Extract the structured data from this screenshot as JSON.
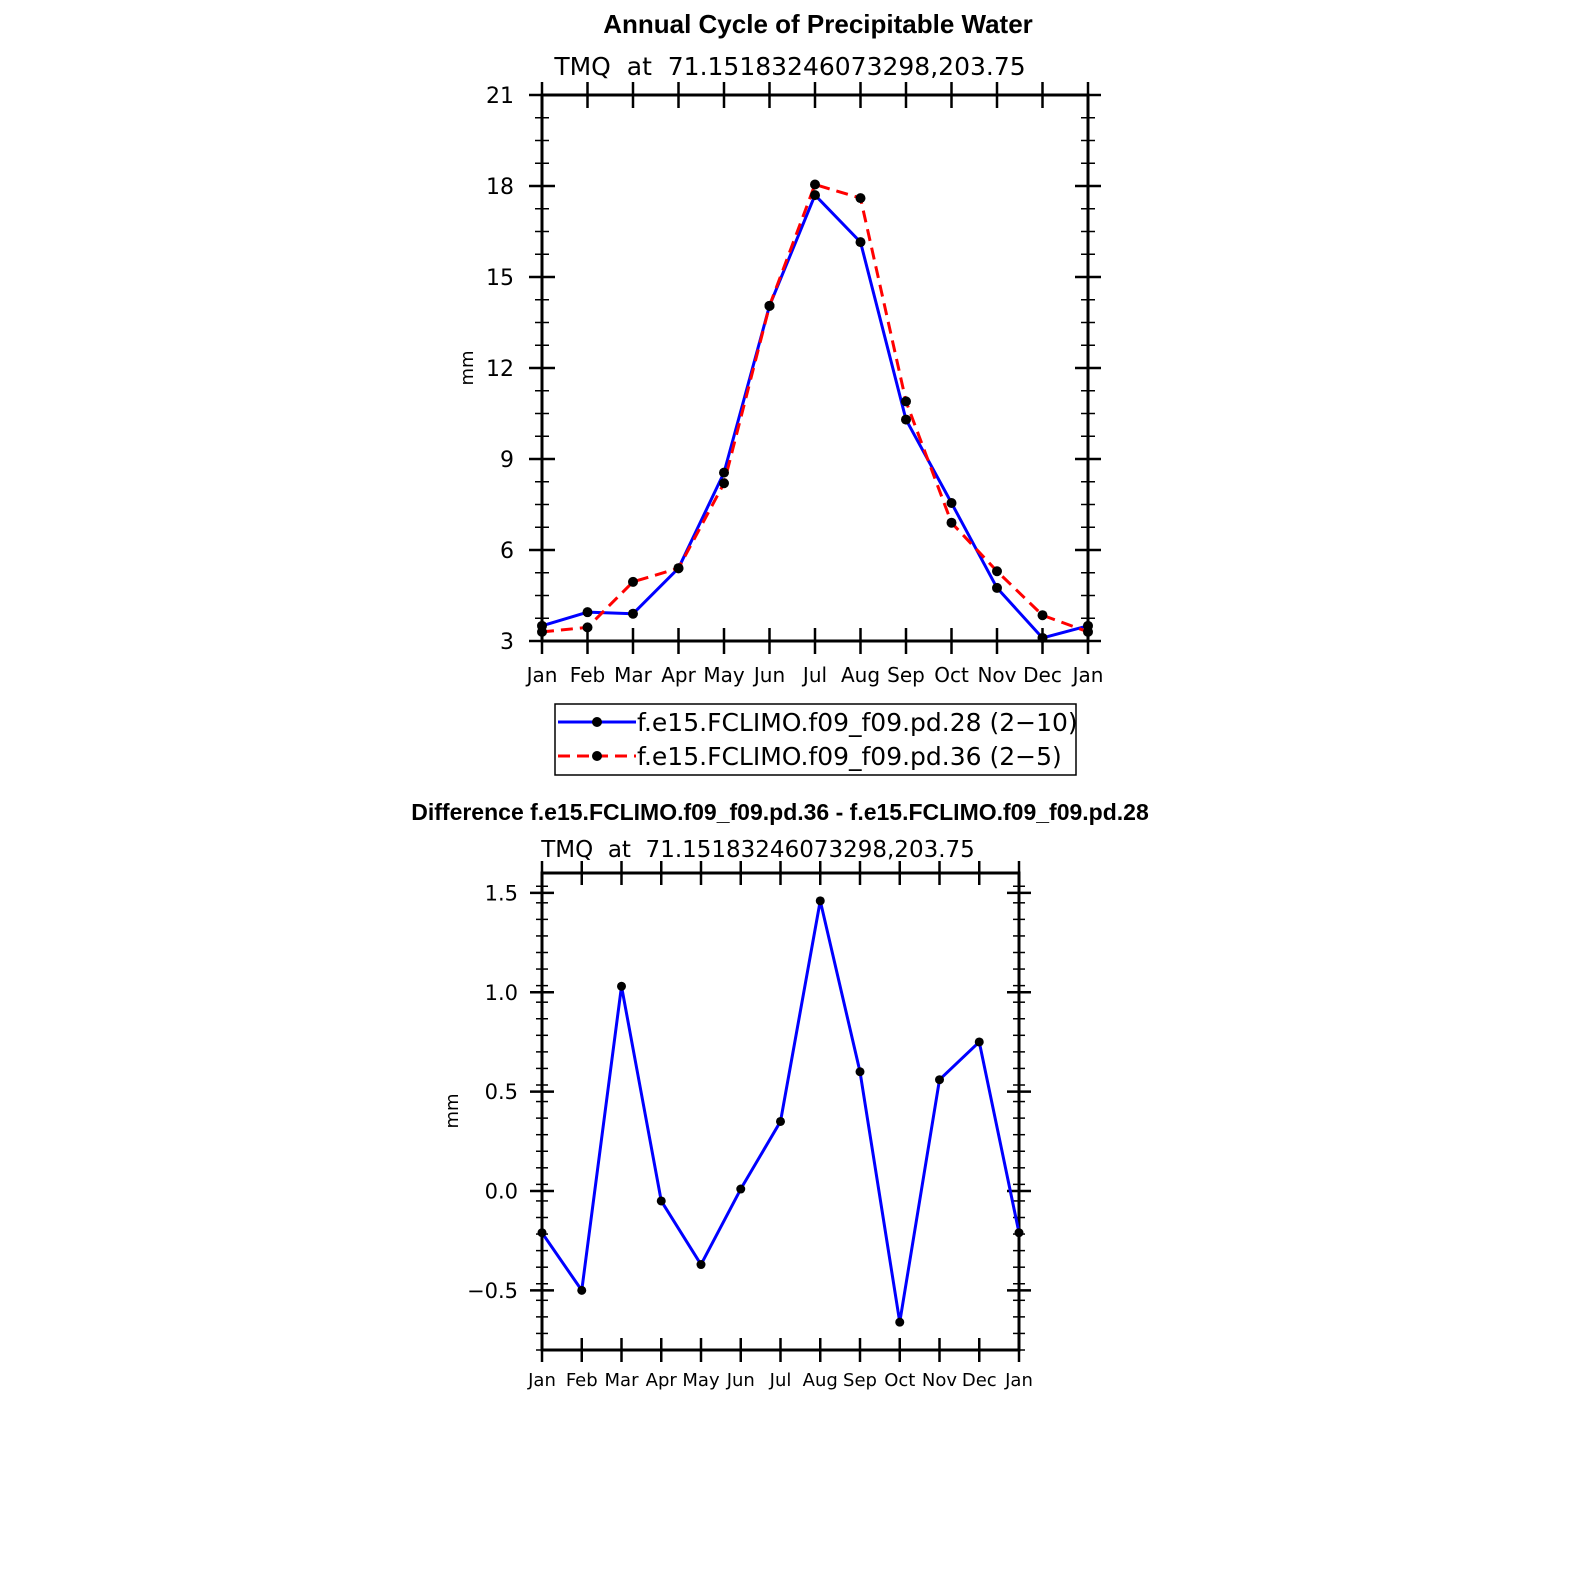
{
  "chart_data": [
    {
      "type": "line",
      "title": "Annual Cycle of Precipitable Water",
      "subtitle": "TMQ  at  71.15183246073298,203.75",
      "xlabel": "",
      "ylabel": "mm",
      "categories": [
        "Jan",
        "Feb",
        "Mar",
        "Apr",
        "May",
        "Jun",
        "Jul",
        "Aug",
        "Sep",
        "Oct",
        "Nov",
        "Dec",
        "Jan"
      ],
      "ylim": [
        3,
        21
      ],
      "yticks": [
        3,
        6,
        9,
        12,
        15,
        18,
        21
      ],
      "ytick_labels": [
        "3",
        "6",
        "9",
        "12",
        "15",
        "18",
        "21"
      ],
      "grid": false,
      "legend": "bottom",
      "series": [
        {
          "name": "f.e15.FCLIMO.f09_f09.pd.28 (2−10)",
          "color": "#0000ff",
          "dash": "solid",
          "values": [
            3.5,
            3.95,
            3.9,
            5.4,
            8.55,
            14.05,
            17.7,
            16.15,
            10.3,
            7.55,
            4.75,
            3.1,
            3.5
          ]
        },
        {
          "name": "f.e15.FCLIMO.f09_f09.pd.36 (2−5)",
          "color": "#ff0000",
          "dash": "dashed",
          "values": [
            3.3,
            3.45,
            4.95,
            5.4,
            8.2,
            14.05,
            18.05,
            17.6,
            10.9,
            6.9,
            5.3,
            3.85,
            3.3
          ]
        }
      ]
    },
    {
      "type": "line",
      "title": "Difference f.e15.FCLIMO.f09_f09.pd.36 - f.e15.FCLIMO.f09_f09.pd.28",
      "subtitle": "TMQ  at  71.15183246073298,203.75",
      "xlabel": "",
      "ylabel": "mm",
      "categories": [
        "Jan",
        "Feb",
        "Mar",
        "Apr",
        "May",
        "Jun",
        "Jul",
        "Aug",
        "Sep",
        "Oct",
        "Nov",
        "Dec",
        "Jan"
      ],
      "ylim": [
        -0.8,
        1.6
      ],
      "yticks": [
        -0.5,
        0.0,
        0.5,
        1.0,
        1.5
      ],
      "ytick_labels": [
        "−0.5",
        "0.0",
        "0.5",
        "1.0",
        "1.5"
      ],
      "grid": false,
      "series": [
        {
          "color": "#0000ff",
          "dash": "solid",
          "values": [
            -0.21,
            -0.5,
            1.03,
            -0.05,
            -0.37,
            0.01,
            0.35,
            1.46,
            0.6,
            -0.66,
            0.56,
            0.75,
            -0.21
          ]
        }
      ]
    }
  ]
}
